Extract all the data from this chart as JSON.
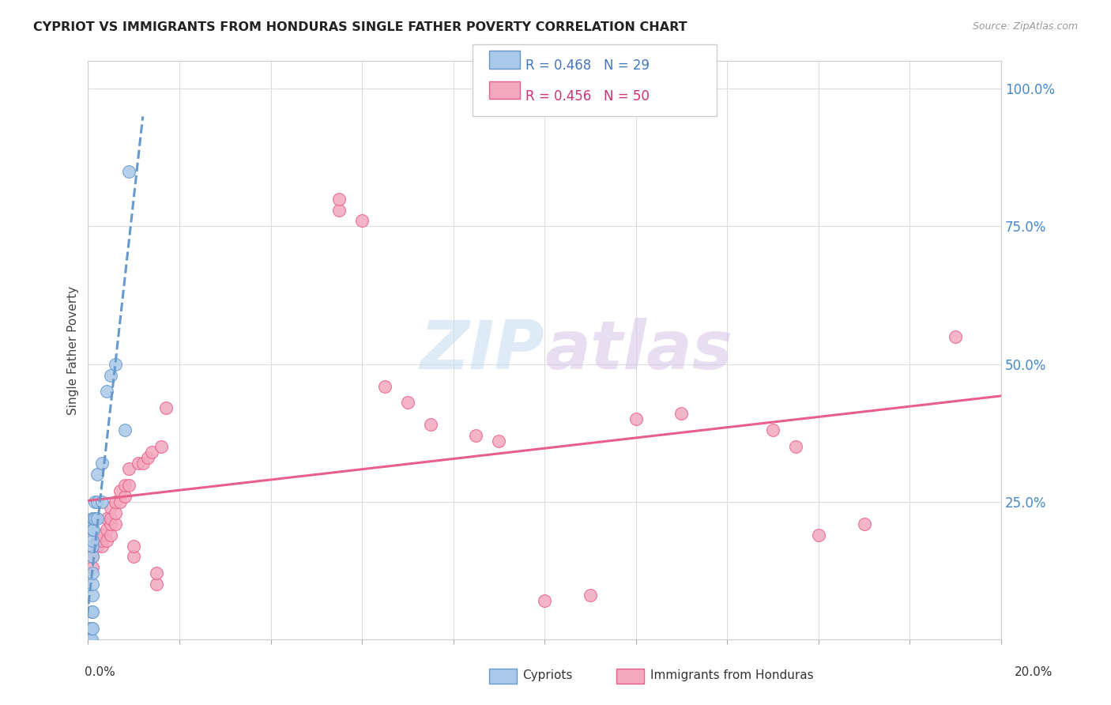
{
  "title": "CYPRIOT VS IMMIGRANTS FROM HONDURAS SINGLE FATHER POVERTY CORRELATION CHART",
  "source": "Source: ZipAtlas.com",
  "ylabel": "Single Father Poverty",
  "yticks": [
    0.0,
    0.25,
    0.5,
    0.75,
    1.0
  ],
  "ytick_labels": [
    "",
    "25.0%",
    "50.0%",
    "75.0%",
    "100.0%"
  ],
  "cypriot_color": "#aac8e8",
  "honduras_color": "#f4a8c0",
  "trend_cypriot_color": "#6699cc",
  "trend_honduras_color": "#e8608a",
  "watermark_zip": "ZIP",
  "watermark_atlas": "atlas",
  "cypriot_x": [
    0.0005,
    0.0005,
    0.0008,
    0.0008,
    0.0008,
    0.0009,
    0.0009,
    0.001,
    0.001,
    0.001,
    0.001,
    0.001,
    0.001,
    0.001,
    0.0012,
    0.0012,
    0.0015,
    0.0015,
    0.002,
    0.002,
    0.002,
    0.003,
    0.003,
    0.004,
    0.005,
    0.006,
    0.008,
    0.009,
    0.001
  ],
  "cypriot_y": [
    0.0,
    0.02,
    0.0,
    0.02,
    0.05,
    0.05,
    0.08,
    0.1,
    0.12,
    0.15,
    0.17,
    0.18,
    0.2,
    0.22,
    0.2,
    0.22,
    0.22,
    0.25,
    0.22,
    0.25,
    0.3,
    0.25,
    0.32,
    0.45,
    0.48,
    0.5,
    0.38,
    0.85,
    0.02
  ],
  "honduras_x": [
    0.001,
    0.001,
    0.002,
    0.002,
    0.003,
    0.003,
    0.003,
    0.004,
    0.004,
    0.004,
    0.005,
    0.005,
    0.005,
    0.005,
    0.006,
    0.006,
    0.006,
    0.007,
    0.007,
    0.008,
    0.008,
    0.009,
    0.009,
    0.01,
    0.01,
    0.011,
    0.012,
    0.013,
    0.014,
    0.015,
    0.015,
    0.016,
    0.017,
    0.055,
    0.055,
    0.06,
    0.065,
    0.07,
    0.075,
    0.085,
    0.09,
    0.1,
    0.11,
    0.12,
    0.13,
    0.15,
    0.155,
    0.16,
    0.17,
    0.19
  ],
  "honduras_y": [
    0.13,
    0.15,
    0.17,
    0.18,
    0.17,
    0.18,
    0.19,
    0.18,
    0.2,
    0.22,
    0.19,
    0.21,
    0.22,
    0.24,
    0.21,
    0.23,
    0.25,
    0.25,
    0.27,
    0.26,
    0.28,
    0.28,
    0.31,
    0.15,
    0.17,
    0.32,
    0.32,
    0.33,
    0.34,
    0.1,
    0.12,
    0.35,
    0.42,
    0.78,
    0.8,
    0.76,
    0.46,
    0.43,
    0.39,
    0.37,
    0.36,
    0.07,
    0.08,
    0.4,
    0.41,
    0.38,
    0.35,
    0.19,
    0.21,
    0.55
  ]
}
